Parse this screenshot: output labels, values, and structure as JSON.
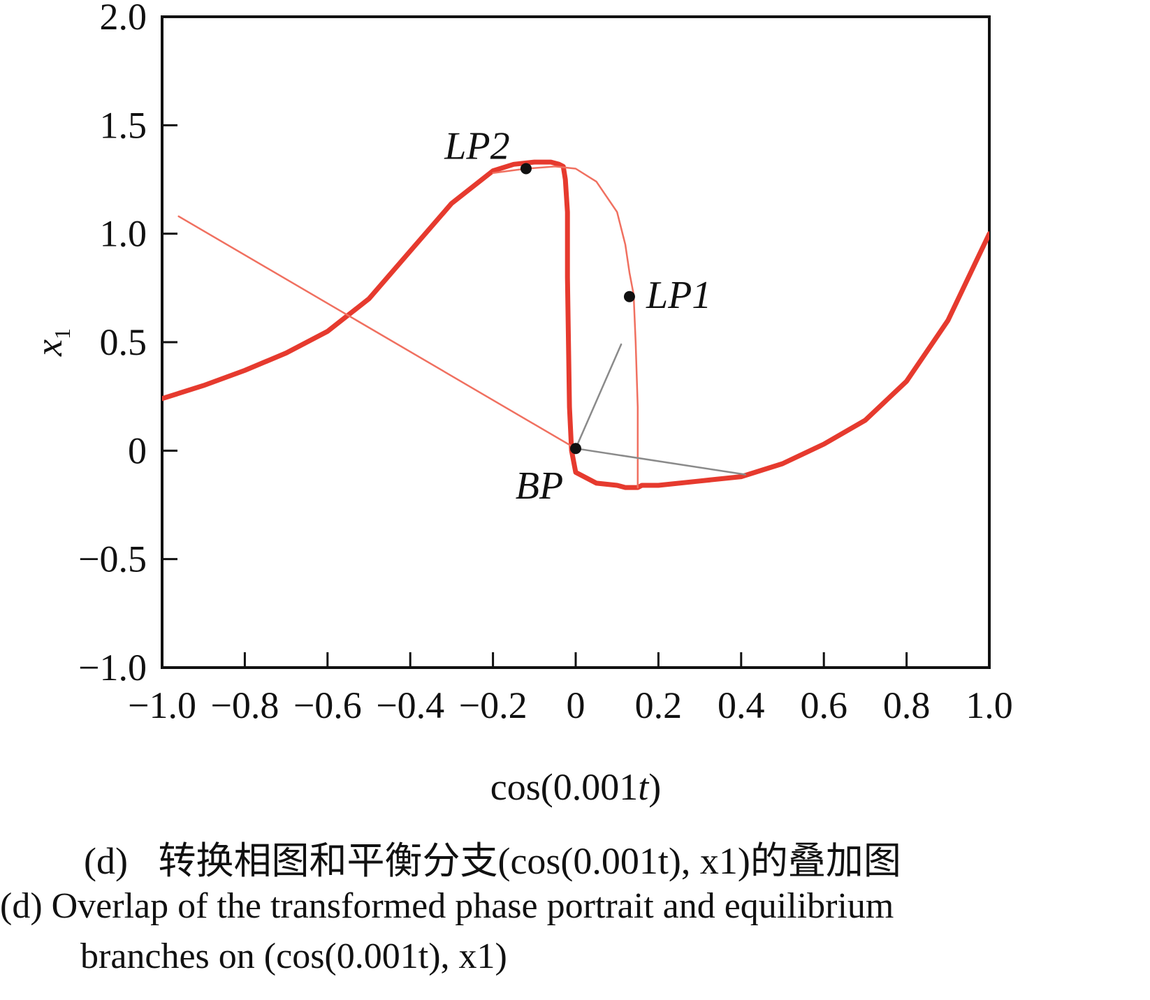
{
  "chart_data": {
    "type": "line",
    "xlabel": "cos(0.001t)",
    "ylabel": "x1",
    "xlim": [
      -1.0,
      1.0
    ],
    "ylim": [
      -1.0,
      2.0
    ],
    "x_ticks": [
      "−1.0",
      "−0.8",
      "−0.6",
      "−0.4",
      "−0.2",
      "0",
      "0.2",
      "0.4",
      "0.6",
      "0.8",
      "1.0"
    ],
    "y_ticks": [
      "2.0",
      "1.5",
      "1.0",
      "0.5",
      "0",
      "−0.5",
      "−1.0"
    ],
    "grid": false,
    "colors": {
      "phase_portrait": "#e63a2e",
      "equilibrium": "#f07060",
      "branch_connector": "#8a8a8a",
      "points": "#111111"
    },
    "series": [
      {
        "role": "phase_portrait",
        "x": [
          -1.0,
          -0.9,
          -0.8,
          -0.7,
          -0.6,
          -0.5,
          -0.4,
          -0.3,
          -0.2,
          -0.15,
          -0.1,
          -0.06,
          -0.04,
          -0.03,
          -0.025,
          -0.02,
          -0.02,
          -0.015,
          -0.01,
          0.0,
          0.05,
          0.1,
          0.12,
          0.14,
          0.15,
          0.16,
          0.2,
          0.3,
          0.4,
          0.5,
          0.6,
          0.7,
          0.8,
          0.9,
          0.97,
          1.0
        ],
        "y": [
          0.24,
          0.3,
          0.37,
          0.45,
          0.55,
          0.7,
          0.92,
          1.14,
          1.29,
          1.32,
          1.33,
          1.33,
          1.32,
          1.31,
          1.25,
          1.1,
          0.8,
          0.2,
          0.0,
          -0.1,
          -0.15,
          -0.16,
          -0.17,
          -0.17,
          -0.17,
          -0.16,
          -0.16,
          -0.14,
          -0.12,
          -0.06,
          0.03,
          0.14,
          0.32,
          0.6,
          0.88,
          1.0
        ]
      },
      {
        "role": "equilibrium_upper",
        "x": [
          -0.2,
          -0.12,
          -0.05,
          0.0,
          0.05,
          0.1,
          0.12,
          0.13,
          0.14,
          0.145,
          0.15,
          0.15,
          0.15
        ],
        "y": [
          1.28,
          1.3,
          1.31,
          1.3,
          1.24,
          1.1,
          0.95,
          0.82,
          0.72,
          0.5,
          0.2,
          0.0,
          -0.17
        ]
      },
      {
        "role": "equilibrium_line",
        "x": [
          -0.96,
          0.0
        ],
        "y": [
          1.08,
          0.01
        ]
      },
      {
        "role": "branch_connector",
        "x": [
          0.11,
          0.0,
          0.41
        ],
        "y": [
          0.49,
          0.01,
          -0.11
        ]
      }
    ],
    "points": [
      {
        "label": "LP2",
        "x": -0.12,
        "y": 1.3
      },
      {
        "label": "LP1",
        "x": 0.13,
        "y": 0.71
      },
      {
        "label": "BP",
        "x": 0.0,
        "y": 0.01
      }
    ]
  },
  "caption": {
    "cn_prefix": "(d)",
    "cn_text": "转换相图和平衡分支(cos(0.001t), x1)的叠加图",
    "en_line1": "(d)  Overlap of the transformed phase portrait and equilibrium",
    "en_line2": "branches on (cos(0.001t), x1)"
  }
}
